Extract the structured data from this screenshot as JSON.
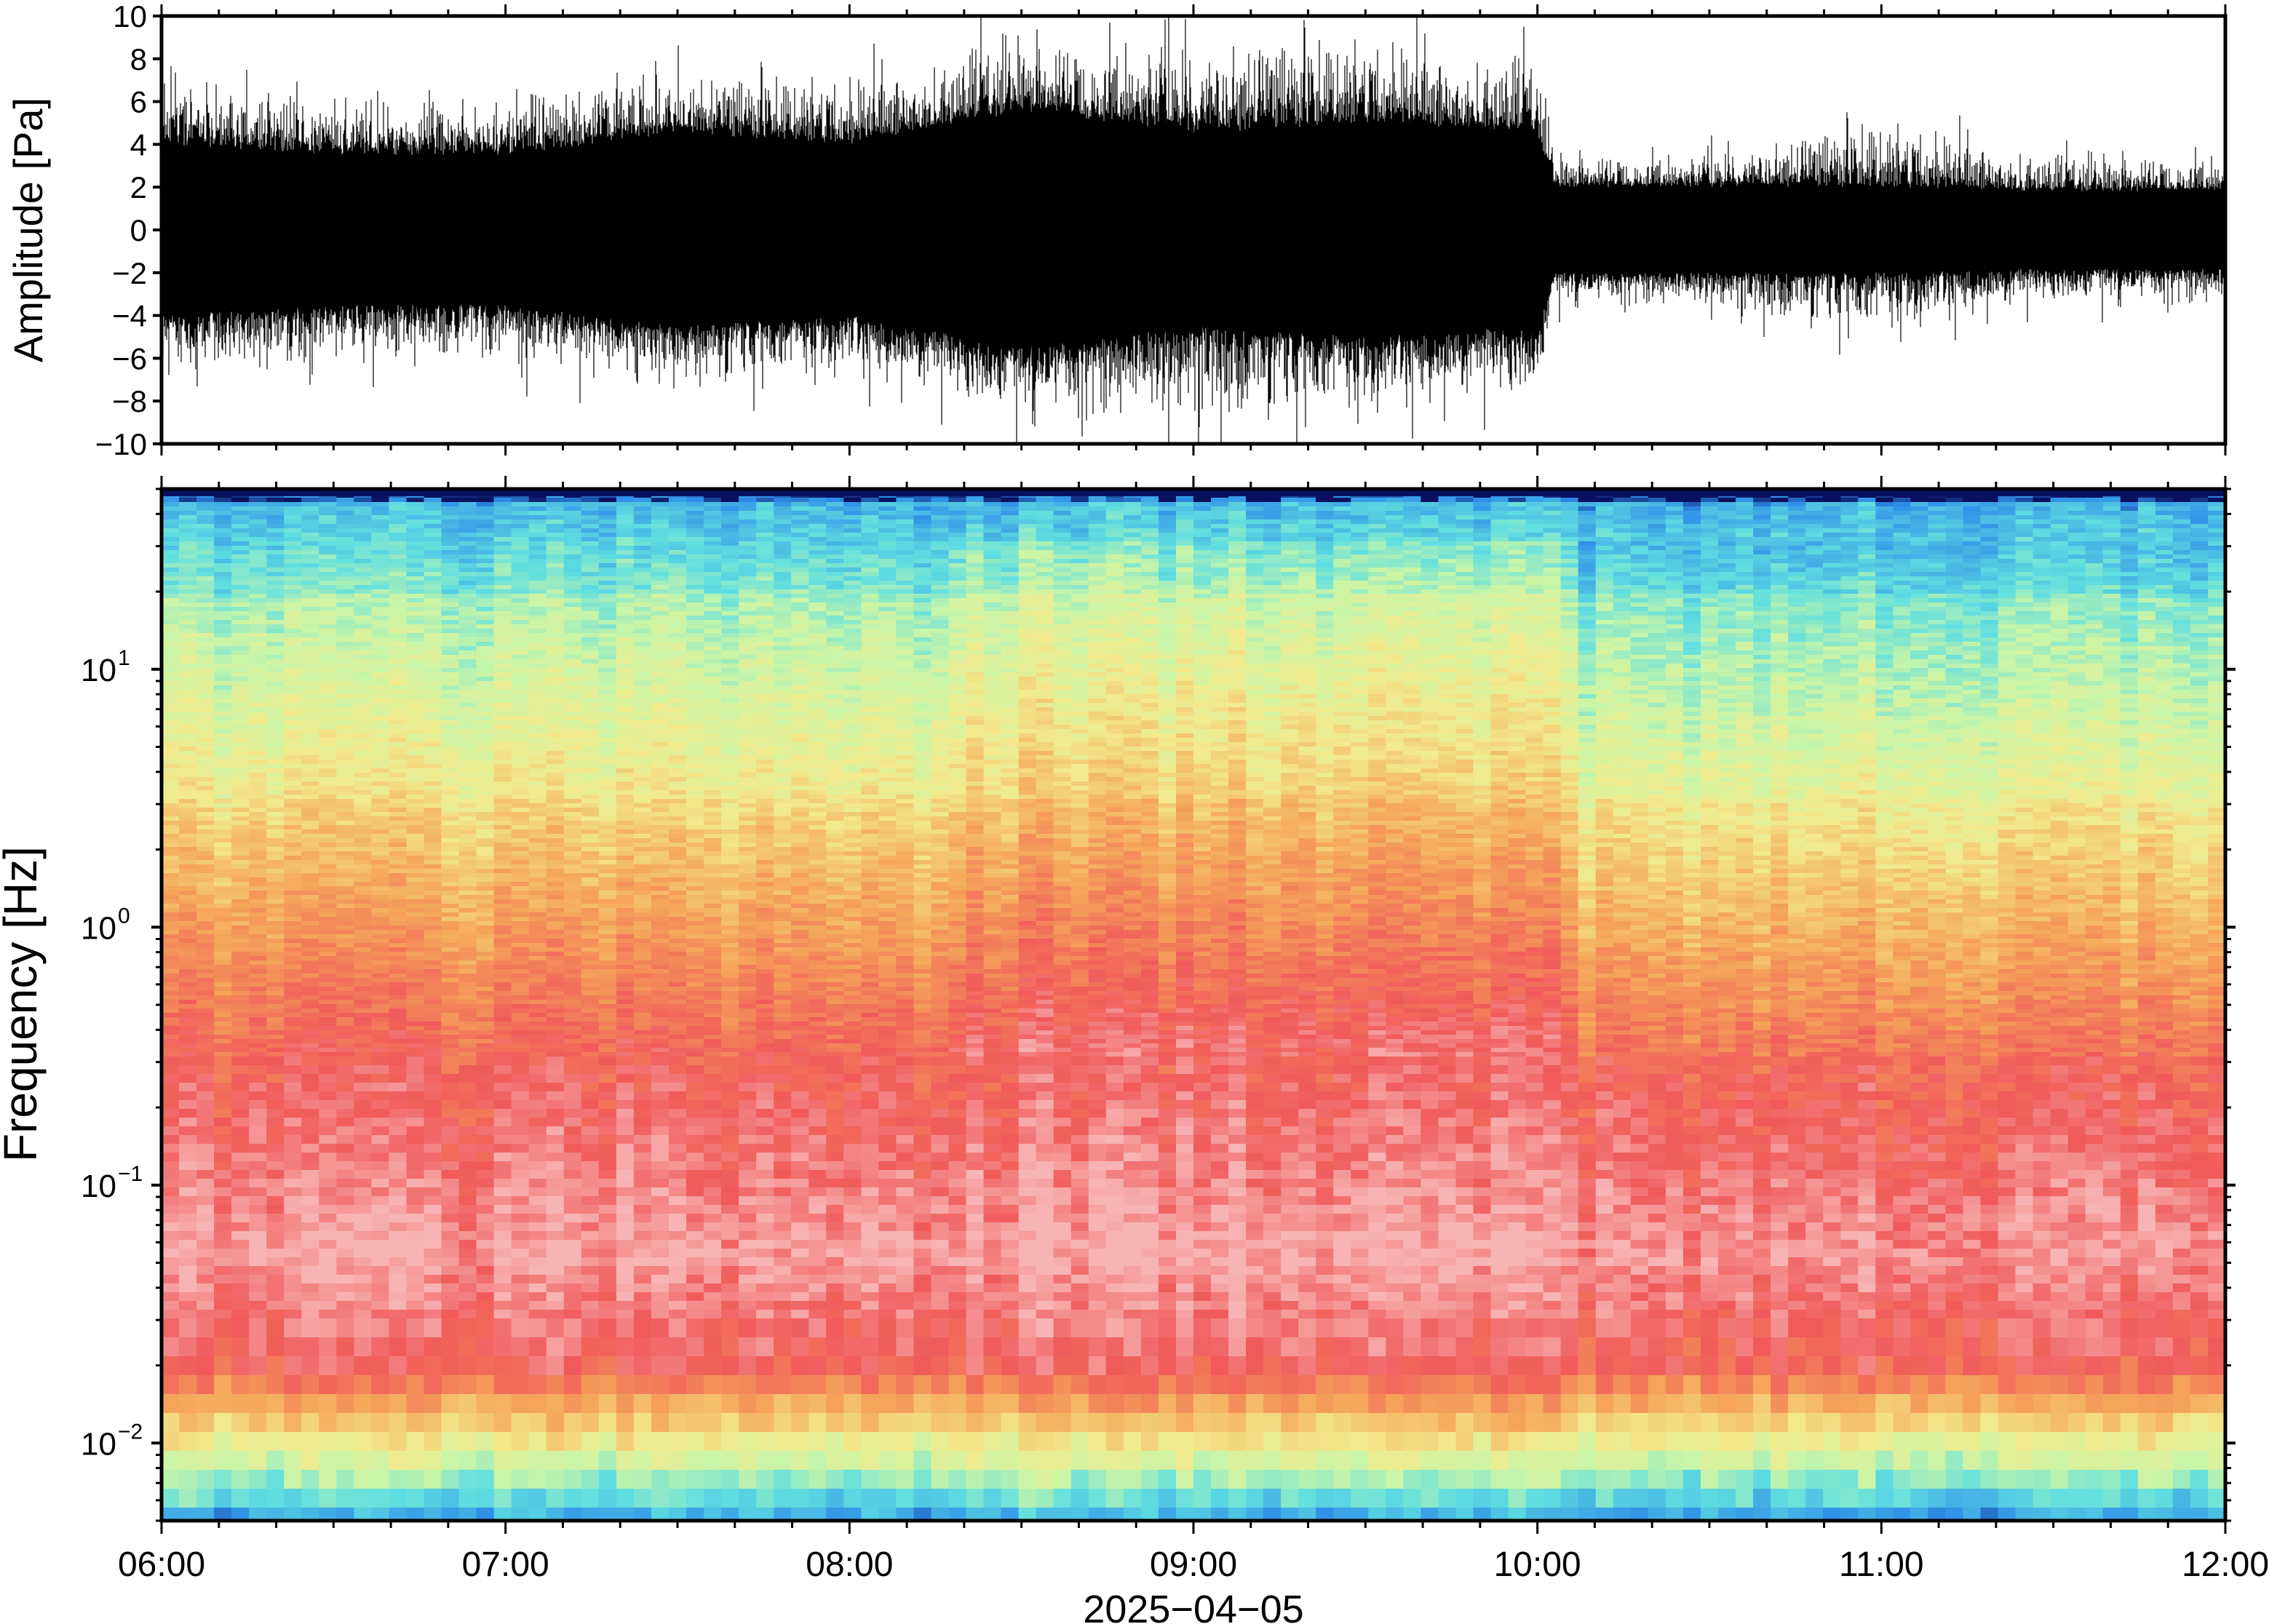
{
  "chart_data": [
    {
      "type": "line",
      "panel": "waveform",
      "ylabel": "Amplitude [Pa]",
      "ylim": [
        -10,
        10
      ],
      "yticks": [
        -10,
        -8,
        -6,
        -4,
        -2,
        0,
        2,
        4,
        6,
        8,
        10
      ],
      "ytick_labels": [
        "−10",
        "−8",
        "−6",
        "−4",
        "−2",
        "0",
        "2",
        "4",
        "6",
        "8",
        "10"
      ],
      "xlim": [
        "06:00",
        "12:00"
      ],
      "series": [
        {
          "x": [
            "06:00",
            "06:30",
            "07:00",
            "07:30",
            "08:00",
            "08:30",
            "09:00",
            "09:30",
            "10:00",
            "10:03",
            "10:30",
            "11:00",
            "11:30",
            "12:00"
          ],
          "envelope": [
            4.0,
            3.5,
            3.5,
            4.5,
            4.0,
            5.5,
            4.5,
            5.0,
            4.5,
            2.0,
            2.0,
            2.0,
            1.8,
            1.8
          ],
          "peak": [
            8,
            7,
            7,
            8,
            8,
            10,
            10,
            10,
            9,
            4,
            4,
            6,
            4,
            4
          ]
        }
      ],
      "color": "#000000"
    },
    {
      "type": "heatmap",
      "panel": "spectrogram",
      "ylabel": "Frequency [Hz]",
      "yscale": "log",
      "ylim": [
        0.005,
        50
      ],
      "yticks": [
        0.01,
        0.1,
        1,
        10
      ],
      "ytick_labels": [
        {
          "base": "10",
          "exp": "−2"
        },
        {
          "base": "10",
          "exp": "−1"
        },
        {
          "base": "10",
          "exp": "0"
        },
        {
          "base": "10",
          "exp": "1"
        }
      ],
      "xlabel": "2025−04−05",
      "xlim": [
        "06:00",
        "12:00"
      ],
      "xticks": [
        "06:00",
        "07:00",
        "08:00",
        "09:00",
        "10:00",
        "11:00",
        "12:00"
      ],
      "colormap": "spectral (low: cyan/green, mid: yellow/orange, high: red/pink)",
      "colors": {
        "low": "#2f8fe8",
        "cyan": "#60dfe0",
        "green": "#c8f5a8",
        "yellow": "#f2ea8c",
        "orange": "#f5a75a",
        "red": "#f05a5a",
        "pink": "#f8b4b4",
        "top_band": "#0a1060"
      }
    }
  ]
}
